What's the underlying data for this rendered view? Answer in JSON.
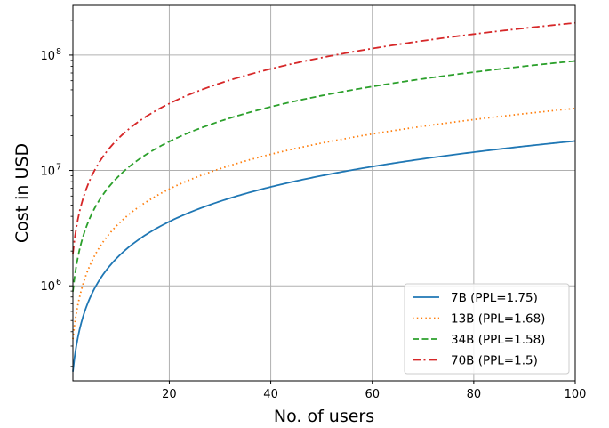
{
  "chart_data": {
    "type": "line",
    "xlabel": "No. of users",
    "ylabel": "Cost in USD",
    "xlim": [
      1,
      100
    ],
    "ylim": [
      150000,
      270000000
    ],
    "yscale": "log",
    "grid": true,
    "legend_position": "lower-right",
    "xticks": [
      20,
      40,
      60,
      80,
      100
    ],
    "yticks": [
      {
        "value": 1000000,
        "base": "10",
        "exp": "6"
      },
      {
        "value": 10000000,
        "base": "10",
        "exp": "7"
      },
      {
        "value": 100000000,
        "base": "10",
        "exp": "8"
      }
    ],
    "cost_per_user": {
      "note": ""
    },
    "series": [
      {
        "name": "7B (PPL=1.75)",
        "color": "#1f77b4",
        "style": "solid",
        "per_user": 180000,
        "x": [
          1,
          20,
          40,
          60,
          80,
          100
        ],
        "values": [
          180000,
          3600000,
          7200000,
          10800000,
          14400000,
          18000000
        ]
      },
      {
        "name": "13B (PPL=1.68)",
        "color": "#ff7f0e",
        "style": "dotted",
        "per_user": 345000,
        "x": [
          1,
          20,
          40,
          60,
          80,
          100
        ],
        "values": [
          345000,
          6900000,
          13800000,
          20700000,
          27600000,
          34500000
        ]
      },
      {
        "name": "34B (PPL=1.58)",
        "color": "#2ca02c",
        "style": "dashed",
        "per_user": 890000,
        "x": [
          1,
          20,
          40,
          60,
          80,
          100
        ],
        "values": [
          890000,
          17800000,
          35600000,
          53400000,
          71200000,
          89000000
        ]
      },
      {
        "name": "70B (PPL=1.5)",
        "color": "#d62728",
        "style": "dashdot",
        "per_user": 1900000,
        "x": [
          1,
          20,
          40,
          60,
          80,
          100
        ],
        "values": [
          1900000,
          38000000,
          76000000,
          114000000,
          152000000,
          190000000
        ]
      }
    ]
  }
}
